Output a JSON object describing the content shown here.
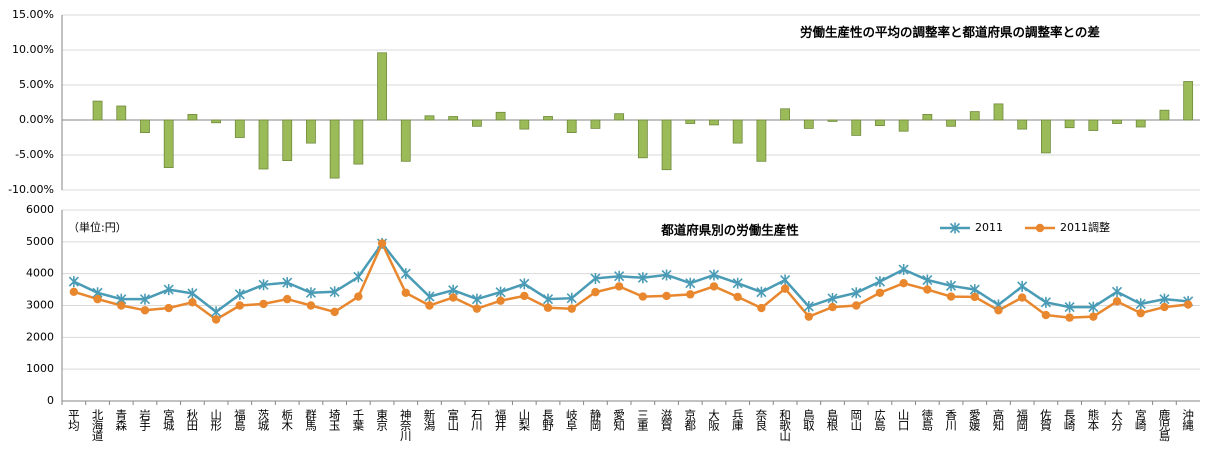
{
  "chart_data": [
    {
      "type": "bar",
      "title": "労働生産性の平均の調整率と都道府県の調整率との差",
      "values": [
        0,
        2.7,
        2.0,
        -1.8,
        -6.8,
        0.8,
        -0.4,
        -2.5,
        -7.0,
        -5.8,
        -3.3,
        -8.3,
        -6.3,
        9.6,
        -5.9,
        0.6,
        0.5,
        -0.9,
        1.1,
        -1.3,
        0.5,
        -1.8,
        -1.2,
        0.9,
        -5.4,
        -7.1,
        -0.5,
        -0.7,
        -3.3,
        -5.9,
        1.6,
        -1.2,
        -0.2,
        -2.2,
        -0.8,
        -1.6,
        0.8,
        -0.9,
        1.2,
        2.3,
        -1.3,
        -4.7,
        -1.1,
        -1.5,
        -0.5,
        -1.0,
        1.4,
        5.5
      ],
      "color": "#9bbb59",
      "ylim": [
        -10,
        15
      ],
      "yticks": [
        {
          "value": -10,
          "label": "-10.00%"
        },
        {
          "value": -5,
          "label": "-5.00%"
        },
        {
          "value": 0,
          "label": "0.00%"
        },
        {
          "value": 5,
          "label": "5.00%"
        },
        {
          "value": 10,
          "label": "10.00%"
        },
        {
          "value": 15,
          "label": "15.00%"
        }
      ],
      "grid": true
    },
    {
      "type": "line",
      "title": "都道府県別の労働生産性",
      "unit_label": "（単位:円）",
      "categories": [
        "平均",
        "北海道",
        "青森",
        "岩手",
        "宮城",
        "秋田",
        "山形",
        "福島",
        "茨城",
        "栃木",
        "群馬",
        "埼玉",
        "千葉",
        "東京",
        "神奈川",
        "新潟",
        "富山",
        "石川",
        "福井",
        "山梨",
        "長野",
        "岐阜",
        "静岡",
        "愛知",
        "三重",
        "滋賀",
        "京都",
        "大阪",
        "兵庫",
        "奈良",
        "和歌山",
        "鳥取",
        "島根",
        "岡山",
        "広島",
        "山口",
        "徳島",
        "香川",
        "愛媛",
        "高知",
        "福岡",
        "佐賀",
        "長崎",
        "熊本",
        "大分",
        "宮崎",
        "鹿児島",
        "沖縄"
      ],
      "series": [
        {
          "name": "2011",
          "color": "#4a9bb5",
          "marker": "x",
          "values": [
            3750,
            3400,
            3200,
            3200,
            3500,
            3380,
            2800,
            3350,
            3650,
            3720,
            3400,
            3430,
            3900,
            4950,
            4000,
            3280,
            3480,
            3200,
            3420,
            3680,
            3200,
            3230,
            3850,
            3920,
            3870,
            3960,
            3700,
            3960,
            3700,
            3420,
            3800,
            2970,
            3220,
            3400,
            3750,
            4130,
            3800,
            3620,
            3500,
            3020,
            3600,
            3100,
            2950,
            2950,
            3430,
            3050,
            3200,
            3130
          ]
        },
        {
          "name": "2011調整",
          "color": "#e8872e",
          "marker": "circle",
          "values": [
            3430,
            3200,
            3000,
            2850,
            2920,
            3100,
            2560,
            3000,
            3050,
            3200,
            3000,
            2800,
            3280,
            4950,
            3400,
            3000,
            3250,
            2900,
            3150,
            3300,
            2930,
            2900,
            3420,
            3600,
            3280,
            3300,
            3350,
            3600,
            3270,
            2920,
            3530,
            2650,
            2950,
            3000,
            3400,
            3700,
            3500,
            3280,
            3270,
            2850,
            3250,
            2700,
            2620,
            2650,
            3130,
            2760,
            2950,
            3030
          ]
        }
      ],
      "ylim": [
        0,
        6000
      ],
      "yticks": [
        0,
        1000,
        2000,
        3000,
        4000,
        5000,
        6000
      ],
      "grid": true,
      "legend": "top-right"
    }
  ]
}
